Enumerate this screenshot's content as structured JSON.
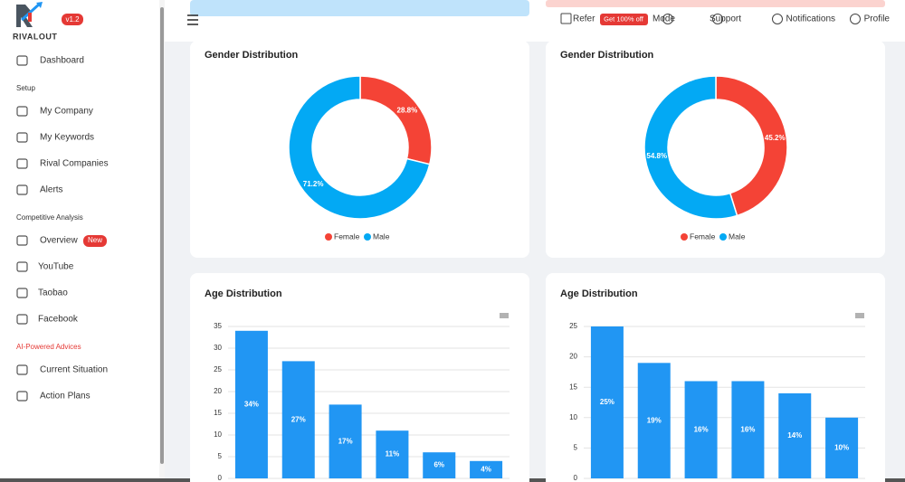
{
  "sidebar": {
    "brand": "RIVALOUT",
    "version": "v1.2",
    "dashboard": "Dashboard",
    "badge": "New",
    "sections": [
      {
        "heading": "Setup",
        "items": [
          "My Company",
          "My Keywords",
          "Rival Companies",
          "Alerts"
        ]
      },
      {
        "heading": "Competitive Analysis",
        "items": [
          "Overview",
          "YouTube",
          "Taobao",
          "Facebook"
        ]
      },
      {
        "heading": "AI-Powered Advices",
        "items": [
          "Current Situation",
          "Action Plans"
        ]
      }
    ]
  },
  "topbar": {
    "refer": "Refer",
    "refer_badge": "Get 100% off",
    "links": [
      "Mode",
      "Support",
      "Notifications",
      "Profile"
    ]
  },
  "chart_data": [
    {
      "type": "donut",
      "title": "Gender Distribution",
      "categories": [
        "Female",
        "Male"
      ],
      "values": [
        28.8,
        71.2
      ],
      "value_labels": [
        "28.8%",
        "71.2%"
      ],
      "colors": [
        "#f44336",
        "#03a9f4"
      ]
    },
    {
      "type": "donut",
      "title": "Gender Distribution",
      "categories": [
        "Female",
        "Male"
      ],
      "values": [
        45.2,
        54.8
      ],
      "value_labels": [
        "45.2%",
        "54.8%"
      ],
      "colors": [
        "#f44336",
        "#03a9f4"
      ]
    },
    {
      "type": "bar",
      "title": "Age Distribution",
      "values": [
        34,
        27,
        17,
        11,
        6,
        4
      ],
      "value_labels": [
        "34%",
        "27%",
        "17%",
        "11%",
        "6%",
        "4%"
      ],
      "color": "#2196f3",
      "ylim": [
        0,
        35
      ],
      "yticks": [
        0,
        5,
        10,
        15,
        20,
        25,
        30,
        35
      ],
      "grid": true
    },
    {
      "type": "bar",
      "title": "Age Distribution",
      "values": [
        25,
        19,
        16,
        16,
        14,
        10
      ],
      "value_labels": [
        "25%",
        "19%",
        "16%",
        "16%",
        "14%",
        "10%"
      ],
      "color": "#2196f3",
      "ylim": [
        0,
        25
      ],
      "yticks": [
        0,
        5,
        10,
        15,
        20,
        25
      ],
      "grid": true
    }
  ]
}
